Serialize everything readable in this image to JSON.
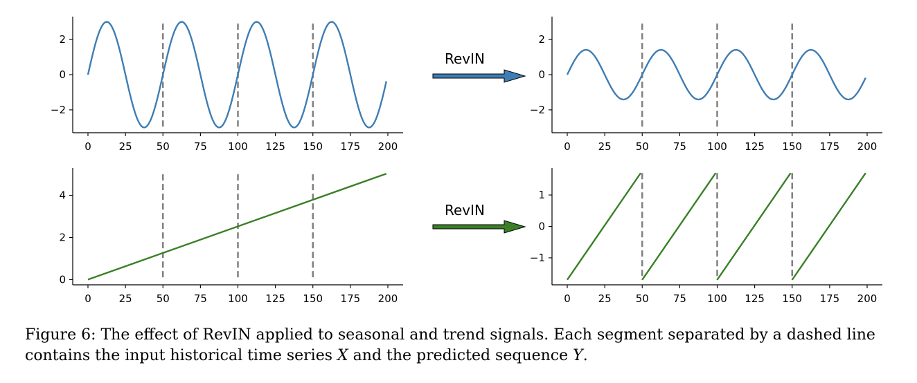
{
  "colors": {
    "seasonal": "#3f7db3",
    "trend": "#3a7f27",
    "divider": "#808080",
    "axis": "#000000"
  },
  "arrows": [
    {
      "label": "RevIN",
      "color": "#3f7db3"
    },
    {
      "label": "RevIN",
      "color": "#3a7f27"
    }
  ],
  "chart_data": [
    {
      "id": "seasonal-input",
      "type": "line",
      "title": "",
      "function": "3*sin(2*pi*x/50)",
      "x_range": [
        0,
        199
      ],
      "xlim": [
        0,
        200
      ],
      "ylim": [
        -3.3,
        3.3
      ],
      "xticks": [
        0,
        25,
        50,
        75,
        100,
        125,
        150,
        175,
        200
      ],
      "yticks": [
        -2,
        0,
        2
      ],
      "ytick_labels": [
        "−2",
        "0",
        "2"
      ],
      "dividers_x": [
        50,
        100,
        150
      ],
      "divider_y_range": [
        -3,
        2.9
      ],
      "series": [
        {
          "color": "#3f7db3"
        }
      ],
      "grid": false
    },
    {
      "id": "seasonal-normalized",
      "type": "line",
      "title": "",
      "function": "1.41*sin(2*pi*x/50)",
      "x_range": [
        0,
        199
      ],
      "xlim": [
        0,
        200
      ],
      "ylim": [
        -3.3,
        3.3
      ],
      "xticks": [
        0,
        25,
        50,
        75,
        100,
        125,
        150,
        175,
        200
      ],
      "yticks": [
        -2,
        0,
        2
      ],
      "ytick_labels": [
        "−2",
        "0",
        "2"
      ],
      "dividers_x": [
        50,
        100,
        150
      ],
      "divider_y_range": [
        -3,
        2.9
      ],
      "series": [
        {
          "color": "#3f7db3"
        }
      ],
      "grid": false
    },
    {
      "id": "trend-input",
      "type": "line",
      "title": "",
      "x": [
        0,
        199
      ],
      "y": [
        0,
        5.03
      ],
      "xlim": [
        0,
        200
      ],
      "ylim": [
        -0.25,
        5.3
      ],
      "xticks": [
        0,
        25,
        50,
        75,
        100,
        125,
        150,
        175,
        200
      ],
      "yticks": [
        0,
        2,
        4
      ],
      "ytick_labels": [
        "0",
        "2",
        "4"
      ],
      "dividers_x": [
        50,
        100,
        150
      ],
      "divider_y_range": [
        0,
        5
      ],
      "series": [
        {
          "color": "#3a7f27"
        }
      ],
      "grid": false
    },
    {
      "id": "trend-normalized",
      "type": "line",
      "title": "",
      "segments": [
        {
          "x": [
            0,
            49
          ],
          "y": [
            -1.7,
            1.7
          ]
        },
        {
          "x": [
            50,
            99
          ],
          "y": [
            -1.7,
            1.7
          ]
        },
        {
          "x": [
            100,
            149
          ],
          "y": [
            -1.7,
            1.7
          ]
        },
        {
          "x": [
            150,
            199
          ],
          "y": [
            -1.7,
            1.7
          ]
        }
      ],
      "xlim": [
        0,
        200
      ],
      "ylim": [
        -1.86,
        1.86
      ],
      "xticks": [
        0,
        25,
        50,
        75,
        100,
        125,
        150,
        175,
        200
      ],
      "yticks": [
        -1,
        0,
        1
      ],
      "ytick_labels": [
        "−1",
        "0",
        "1"
      ],
      "dividers_x": [
        50,
        100,
        150
      ],
      "divider_y_range": [
        -1.7,
        1.7
      ],
      "series": [
        {
          "color": "#3a7f27"
        }
      ],
      "grid": false
    }
  ],
  "caption": {
    "part1": "Figure 6: The effect of RevIN applied to seasonal and trend signals. Each segment separated by a dashed line contains the input historical time series ",
    "var1": "X",
    "part2": " and the predicted sequence ",
    "var2": "Y",
    "part3": "."
  }
}
